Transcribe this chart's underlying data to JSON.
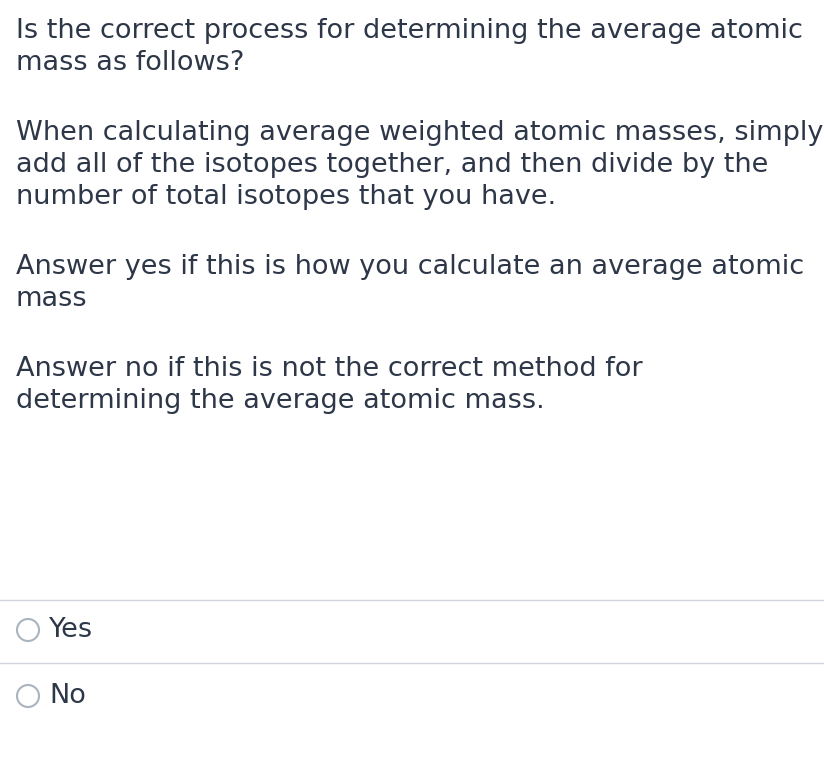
{
  "background_color": "#ffffff",
  "text_color": "#2d3748",
  "paragraph1_line1": "Is the correct process for determining the average atomic",
  "paragraph1_line2": "mass as follows?",
  "paragraph2_line1": "When calculating average weighted atomic masses, simply",
  "paragraph2_line2": "add all of the isotopes together, and then divide by the",
  "paragraph2_line3": "number of total isotopes that you have.",
  "paragraph3_line1": "Answer yes if this is how you calculate an average atomic",
  "paragraph3_line2": "mass",
  "paragraph4_line1": "Answer no if this is not the correct method for",
  "paragraph4_line2": "determining the average atomic mass.",
  "option1": "Yes",
  "option2": "No",
  "font_size_main": 19.5,
  "font_size_option": 19.5,
  "circle_color": "#aab4be",
  "line_color": "#d1d5db"
}
